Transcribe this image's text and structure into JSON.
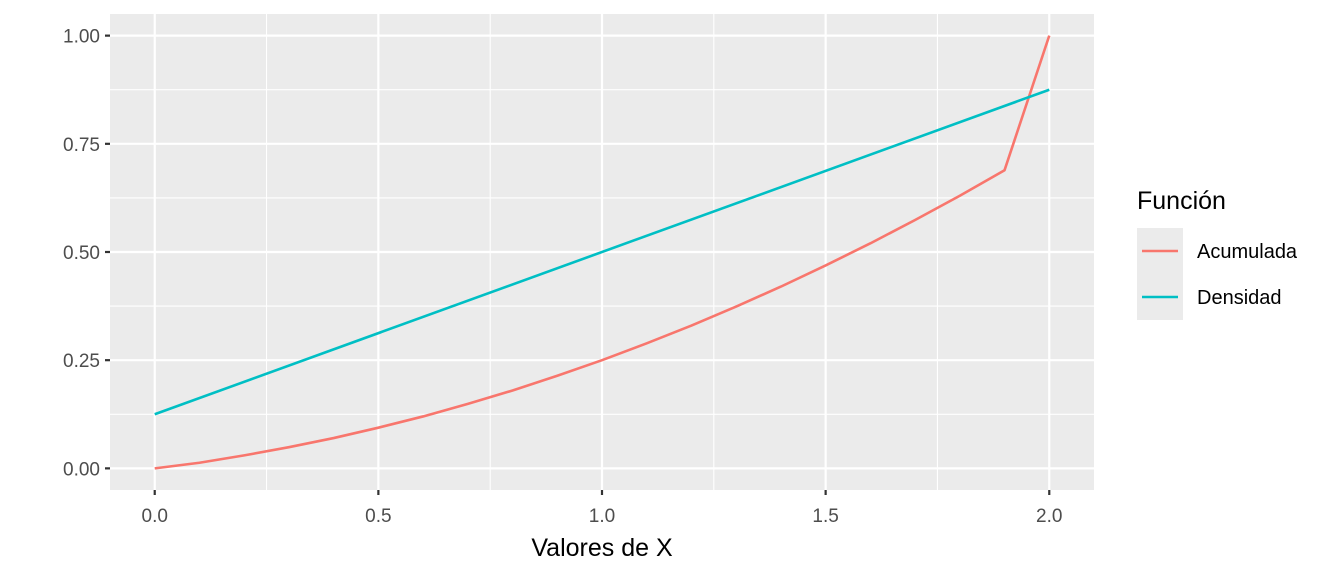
{
  "chart_data": {
    "type": "line",
    "xlabel": "Valores de X",
    "ylabel": "",
    "xlim": [
      -0.1,
      2.1
    ],
    "ylim": [
      -0.05,
      1.05
    ],
    "x_ticks": [
      0.0,
      0.5,
      1.0,
      1.5,
      2.0
    ],
    "x_tick_labels": [
      "0.0",
      "0.5",
      "1.0",
      "1.5",
      "2.0"
    ],
    "y_ticks": [
      0.0,
      0.25,
      0.5,
      0.75,
      1.0
    ],
    "y_tick_labels": [
      "0.00",
      "0.25",
      "0.50",
      "0.75",
      "1.00"
    ],
    "grid": true,
    "legend": {
      "title": "Función",
      "placement": "right"
    },
    "series": [
      {
        "name": "Acumulada",
        "color": "#F8766D",
        "x": [
          0.0,
          0.1,
          0.2,
          0.3,
          0.4,
          0.5,
          0.6,
          0.7,
          0.8,
          0.9,
          1.0,
          1.1,
          1.2,
          1.3,
          1.4,
          1.5,
          1.6,
          1.7,
          1.8,
          1.9,
          2.0
        ],
        "y": [
          0.0,
          0.013,
          0.03,
          0.049,
          0.07,
          0.094,
          0.12,
          0.149,
          0.18,
          0.214,
          0.25,
          0.289,
          0.33,
          0.374,
          0.42,
          0.469,
          0.52,
          0.574,
          0.63,
          0.689,
          1.0
        ]
      },
      {
        "name": "Densidad",
        "color": "#00BFC4",
        "x": [
          0.0,
          2.0
        ],
        "y": [
          0.125,
          0.875
        ]
      }
    ]
  }
}
